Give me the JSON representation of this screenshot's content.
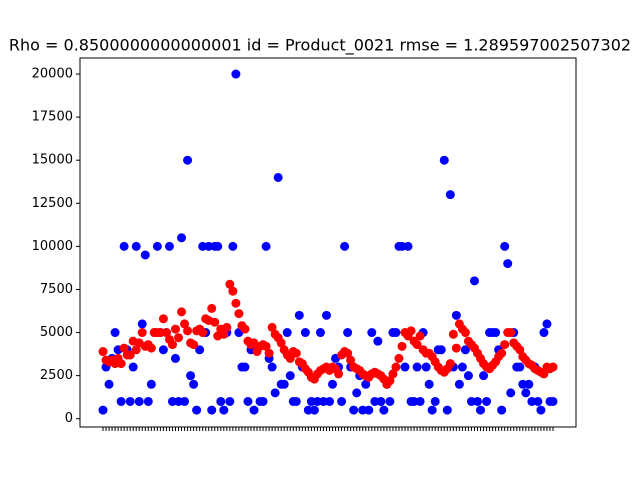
{
  "chart_data": {
    "type": "scatter",
    "title": "Rho = 0.8500000000000001 id = Product_0021 rmse = 1.289597002507302",
    "categories": [
      null,
      null,
      null,
      null,
      null,
      null,
      null,
      null,
      null,
      null,
      null,
      null,
      null,
      null,
      null,
      null,
      null,
      null,
      null,
      null,
      null,
      null,
      null,
      null,
      null,
      null,
      null,
      null,
      null,
      null,
      null,
      null,
      null,
      null,
      null,
      null,
      null,
      null,
      null,
      null,
      null,
      null,
      null,
      null,
      null,
      null,
      null,
      null,
      null,
      null,
      null,
      null,
      null,
      null,
      null,
      null,
      null,
      null,
      null,
      null,
      null,
      null,
      null,
      null,
      null,
      null,
      null,
      null,
      null,
      null,
      null,
      null,
      null,
      null,
      null,
      null,
      null,
      null,
      null,
      null,
      null,
      null,
      null,
      null,
      null,
      null,
      null,
      null,
      null,
      null,
      null,
      null,
      null,
      null,
      null,
      null,
      null,
      null,
      null,
      null,
      null,
      null,
      null,
      null,
      null,
      null,
      null,
      null,
      null,
      null,
      null,
      null,
      null,
      null,
      null,
      null,
      null,
      null,
      null,
      null,
      null,
      null,
      null,
      null,
      null,
      null,
      null,
      null,
      null,
      null,
      null,
      null,
      null,
      null,
      null,
      null,
      null,
      null,
      null,
      null,
      null,
      null,
      null,
      null,
      null,
      null,
      null,
      null,
      null,
      null
    ],
    "series": [
      {
        "color": "#0000ff",
        "values": [
          500,
          3000,
          2000,
          3500,
          5000,
          4000,
          1000,
          10000,
          4000,
          1000,
          3000,
          10000,
          1000,
          5500,
          9500,
          1000,
          2000,
          5000,
          10000,
          5000,
          4000,
          5000,
          10000,
          1000,
          3500,
          1000,
          10500,
          1000,
          15000,
          2500,
          2000,
          500,
          4000,
          10000,
          5000,
          10000,
          500,
          10000,
          10000,
          1000,
          500,
          5000,
          1000,
          10000,
          20000,
          5000,
          3000,
          3000,
          1000,
          4000,
          500,
          4000,
          1000,
          1000,
          10000,
          3500,
          3000,
          1500,
          14000,
          2000,
          2000,
          5000,
          2500,
          1000,
          1000,
          6000,
          3000,
          5000,
          500,
          1000,
          500,
          1000,
          5000,
          1000,
          6000,
          1000,
          2000,
          3500,
          3000,
          1000,
          10000,
          5000,
          3000,
          500,
          1500,
          2500,
          500,
          2000,
          500,
          5000,
          1000,
          4500,
          1000,
          500,
          2000,
          1000,
          5000,
          5000,
          10000,
          10000,
          3000,
          10000,
          1000,
          1000,
          3000,
          1000,
          5000,
          3000,
          2000,
          500,
          1000,
          4000,
          4000,
          15000,
          500,
          13000,
          3000,
          6000,
          2000,
          3000,
          4000,
          2500,
          1000,
          8000,
          1000,
          500,
          2500,
          1000,
          5000,
          5000,
          5000,
          4000,
          500,
          10000,
          9000,
          1500,
          5000,
          3000,
          3000,
          2000,
          1500,
          2000,
          1000,
          3000,
          1000,
          500,
          5000,
          5500,
          1000,
          1000
        ]
      },
      {
        "color": "#ff0000",
        "values": [
          3900,
          3400,
          3300,
          3400,
          3200,
          3500,
          3200,
          4100,
          3700,
          3700,
          4500,
          4000,
          4400,
          5000,
          4200,
          4300,
          4100,
          5000,
          5000,
          5000,
          5800,
          5000,
          4600,
          4300,
          5200,
          4700,
          6200,
          5500,
          5100,
          4400,
          4300,
          5100,
          5200,
          5000,
          5800,
          5700,
          6400,
          5600,
          4800,
          5200,
          4900,
          5300,
          7800,
          7400,
          6700,
          6100,
          5400,
          5200,
          4500,
          4300,
          4400,
          3900,
          4200,
          4300,
          4200,
          3800,
          5300,
          4900,
          4700,
          4400,
          4000,
          3700,
          3500,
          3900,
          3800,
          3300,
          3200,
          2900,
          2700,
          2400,
          2300,
          2600,
          2800,
          2900,
          3000,
          2800,
          3000,
          2900,
          2600,
          3700,
          3900,
          3800,
          3400,
          3000,
          2900,
          2800,
          2600,
          2500,
          2400,
          2600,
          2700,
          2600,
          2500,
          2300,
          2000,
          2200,
          2600,
          3000,
          3500,
          4200,
          5000,
          4800,
          5100,
          4500,
          4300,
          4800,
          4000,
          3800,
          3800,
          3600,
          3300,
          3000,
          2800,
          2700,
          2900,
          3200,
          4900,
          4100,
          5500,
          5200,
          5000,
          4500,
          4300,
          4100,
          3800,
          3500,
          3200,
          3000,
          2900,
          3100,
          3300,
          3600,
          3800,
          4300,
          5000,
          5000,
          4400,
          4200,
          4000,
          3600,
          3400,
          3200,
          3100,
          2900,
          2800,
          2700,
          2600,
          3000,
          2900,
          3000
        ]
      }
    ],
    "ylim": [
      -480,
      20930
    ],
    "yticks": [
      0,
      2500,
      5000,
      7500,
      10000,
      12500,
      15000,
      17500,
      20000
    ]
  }
}
